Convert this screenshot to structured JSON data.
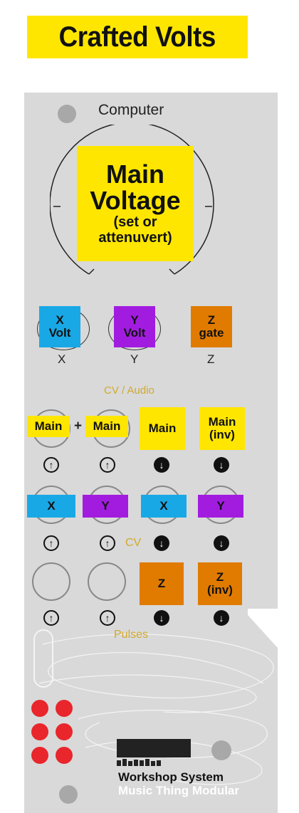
{
  "header": {
    "title": "Crafted Volts"
  },
  "panel": {
    "computer_label": "Computer",
    "main_knob": {
      "line1": "Main",
      "line2": "Voltage",
      "line3": "(set or",
      "line4": "attenuvert)"
    },
    "small_knobs": [
      {
        "line1": "X",
        "line2": "Volt",
        "caption": "X",
        "color": "#19a8e6"
      },
      {
        "line1": "Y",
        "line2": "Volt",
        "caption": "Y",
        "color": "#a21ce0"
      },
      {
        "line1": "Z",
        "line2": "gate",
        "caption": "Z",
        "color": "#e07b00"
      }
    ],
    "cv_audio_label": "CV / Audio",
    "row1": {
      "in1": "Main",
      "plus": "+",
      "in2": "Main",
      "out1": "Main",
      "out2_line1": "Main",
      "out2_line2": "(inv)"
    },
    "row2": {
      "in1": "X",
      "in2": "Y",
      "out1": "X",
      "out2": "Y"
    },
    "cv_label": "CV",
    "row3": {
      "out1": "Z",
      "out2_line1": "Z",
      "out2_line2": "(inv)"
    },
    "pulses_label": "Pulses",
    "brand": {
      "line1": "Workshop System",
      "line2": "Music Thing Modular"
    }
  },
  "colors": {
    "yellow": "#ffe600",
    "blue": "#19a8e6",
    "purple": "#a21ce0",
    "orange": "#e07b00",
    "panel": "#d9d9d9",
    "led": "#e8262b",
    "gold": "#d2a92e"
  }
}
